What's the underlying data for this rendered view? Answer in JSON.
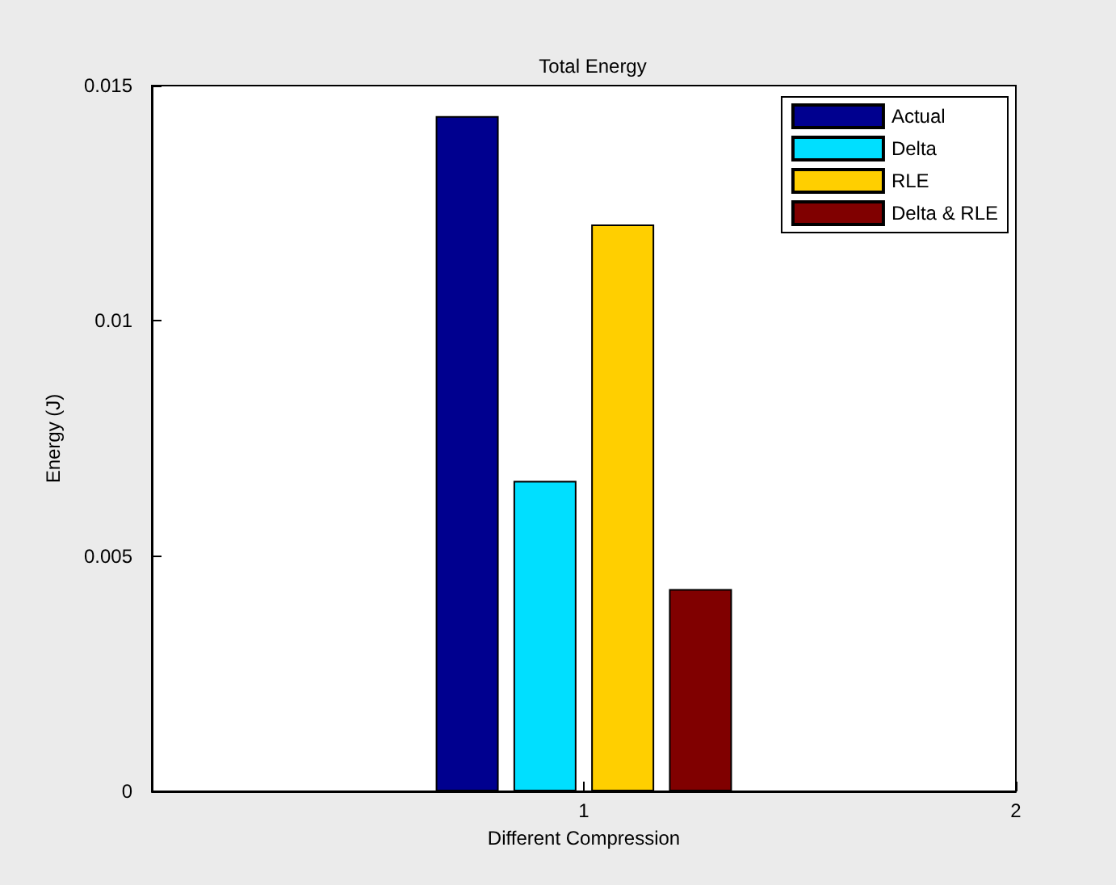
{
  "chart_data": {
    "type": "bar",
    "title": "Total Energy",
    "xlabel": "Different Compression",
    "ylabel": "Energy (J)",
    "series": [
      {
        "name": "Actual",
        "color": "#00008f",
        "x": [
          0.73
        ],
        "values": [
          0.01435
        ]
      },
      {
        "name": "Delta",
        "color": "#00dfff",
        "x": [
          0.91
        ],
        "values": [
          0.0066
        ]
      },
      {
        "name": "RLE",
        "color": "#ffcf00",
        "x": [
          1.09
        ],
        "values": [
          0.01205
        ]
      },
      {
        "name": "Delta & RLE",
        "color": "#800000",
        "x": [
          1.27
        ],
        "values": [
          0.0043
        ]
      }
    ],
    "xlim": [
      0,
      2
    ],
    "xticks": [
      {
        "value": 0,
        "label": null
      },
      1,
      2
    ],
    "ylim": [
      0,
      0.015
    ],
    "yticks": [
      0,
      0.005,
      0.01,
      0.015
    ],
    "grid": false,
    "legend": "top right"
  }
}
